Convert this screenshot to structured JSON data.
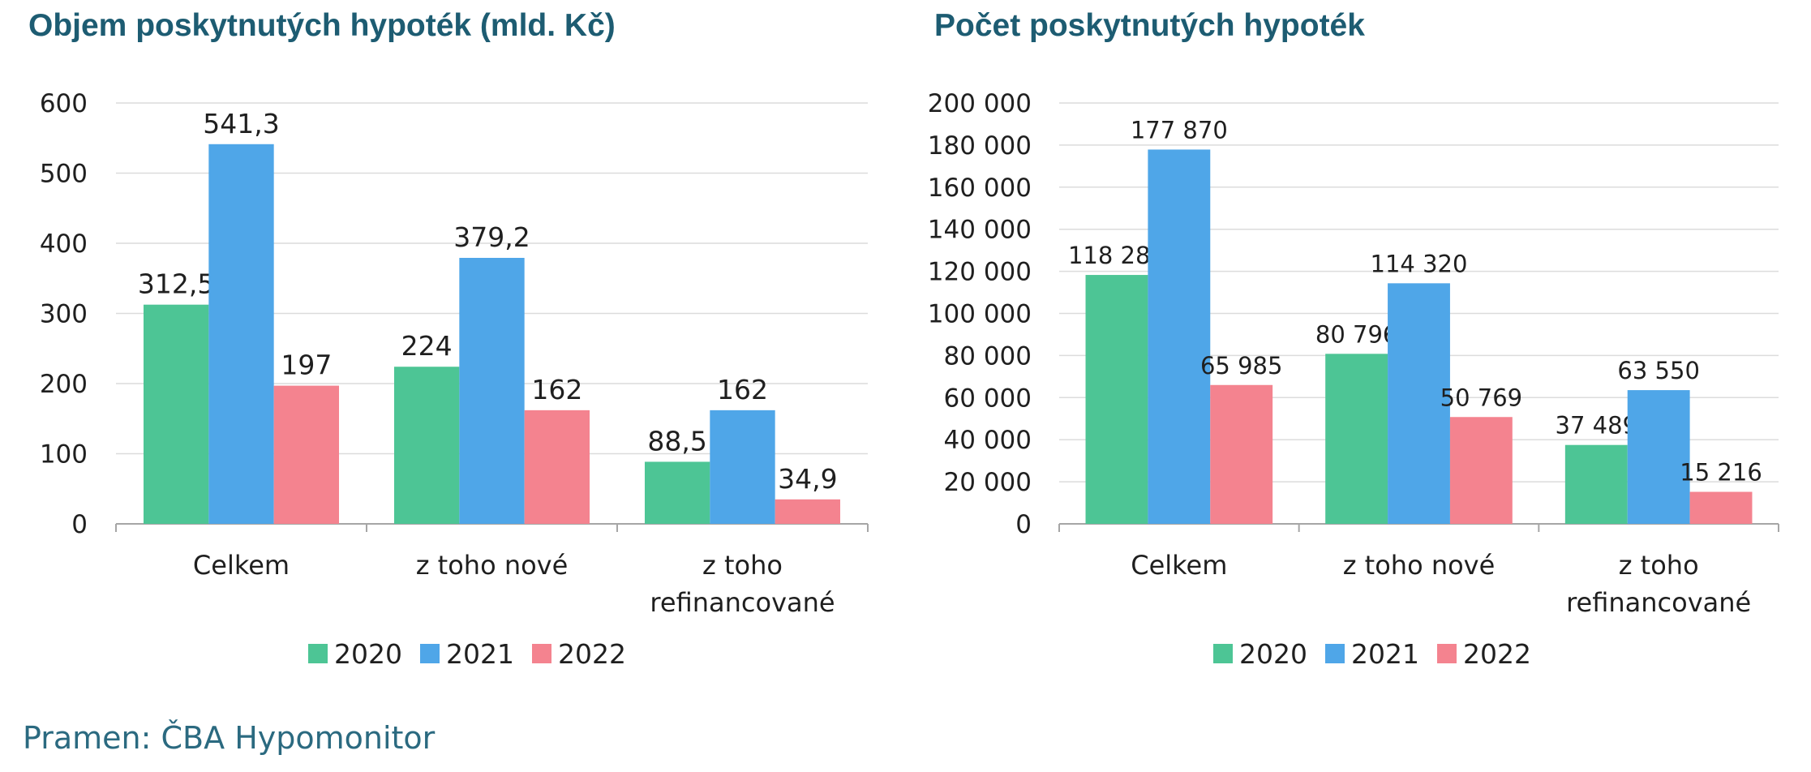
{
  "chart_data": [
    {
      "type": "bar",
      "title": "Objem poskytnutých hypoték (mld. Kč)",
      "categories": [
        [
          "Celkem"
        ],
        [
          "z toho nové"
        ],
        [
          "z toho",
          "refinancované"
        ]
      ],
      "series": [
        {
          "name": "2020",
          "color": "#4dc595",
          "values": [
            312.5,
            224,
            88.5
          ],
          "labels": [
            "312,5",
            "224",
            "88,5"
          ]
        },
        {
          "name": "2021",
          "color": "#4fa6e8",
          "values": [
            541.3,
            379.2,
            162
          ],
          "labels": [
            "541,3",
            "379,2",
            "162"
          ]
        },
        {
          "name": "2022",
          "color": "#f4838f",
          "values": [
            197,
            162,
            34.9
          ],
          "labels": [
            "197",
            "162",
            "34,9"
          ]
        }
      ],
      "ylim": [
        0,
        600
      ],
      "yticks": [
        0,
        100,
        200,
        300,
        400,
        500,
        600
      ],
      "ytick_labels": [
        "0",
        "100",
        "200",
        "300",
        "400",
        "500",
        "600"
      ],
      "grid": true,
      "legend_position": "bottom"
    },
    {
      "type": "bar",
      "title": "Počet poskytnutých hypoték",
      "categories": [
        [
          "Celkem"
        ],
        [
          "z toho nové"
        ],
        [
          "z toho",
          "refinancované"
        ]
      ],
      "series": [
        {
          "name": "2020",
          "color": "#4dc595",
          "values": [
            118285,
            80796,
            37489
          ],
          "labels": [
            "118 285",
            "80 796",
            "37 489"
          ]
        },
        {
          "name": "2021",
          "color": "#4fa6e8",
          "values": [
            177870,
            114320,
            63550
          ],
          "labels": [
            "177 870",
            "114 320",
            "63 550"
          ]
        },
        {
          "name": "2022",
          "color": "#f4838f",
          "values": [
            65985,
            50769,
            15216
          ],
          "labels": [
            "65 985",
            "50 769",
            "15 216"
          ]
        }
      ],
      "ylim": [
        0,
        200000
      ],
      "yticks": [
        0,
        20000,
        40000,
        60000,
        80000,
        100000,
        120000,
        140000,
        160000,
        180000,
        200000
      ],
      "ytick_labels": [
        "0",
        "20 000",
        "40 000",
        "60 000",
        "80 000",
        "100 000",
        "120 000",
        "140 000",
        "160 000",
        "180 000",
        "200 000"
      ],
      "grid": true,
      "legend_position": "bottom"
    }
  ],
  "source": "Pramen: ČBA Hypomonitor"
}
